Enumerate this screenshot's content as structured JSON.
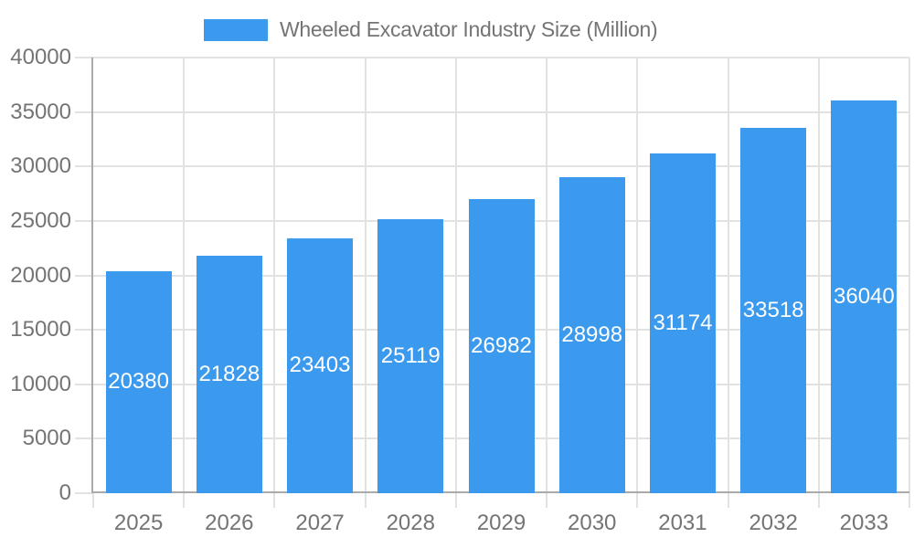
{
  "chart_data": {
    "type": "bar",
    "title": "Wheeled Excavator Industry Size (Million)",
    "categories": [
      "2025",
      "2026",
      "2027",
      "2028",
      "2029",
      "2030",
      "2031",
      "2032",
      "2033"
    ],
    "values": [
      20380,
      21828,
      23403,
      25119,
      26982,
      28998,
      31174,
      33518,
      36040
    ],
    "value_labels": [
      "20380",
      "21828",
      "23403",
      "25119",
      "26982",
      "28998",
      "31174",
      "33518",
      "36040"
    ],
    "y_tick_labels": [
      "0",
      "5000",
      "10000",
      "15000",
      "20000",
      "25000",
      "30000",
      "35000",
      "40000"
    ],
    "ylim": [
      0,
      40000
    ],
    "ytick_step": 5000,
    "grid": true,
    "legend_position": "top-center",
    "xlabel": "",
    "ylabel": "",
    "colors": {
      "bar": "#3B9AEE",
      "value_label": "#FFFFFF",
      "axis_text": "#747474",
      "axis_line": "#AAAAAA",
      "grid_line": "#E2E2E2",
      "background": "#FFFFFF"
    }
  }
}
